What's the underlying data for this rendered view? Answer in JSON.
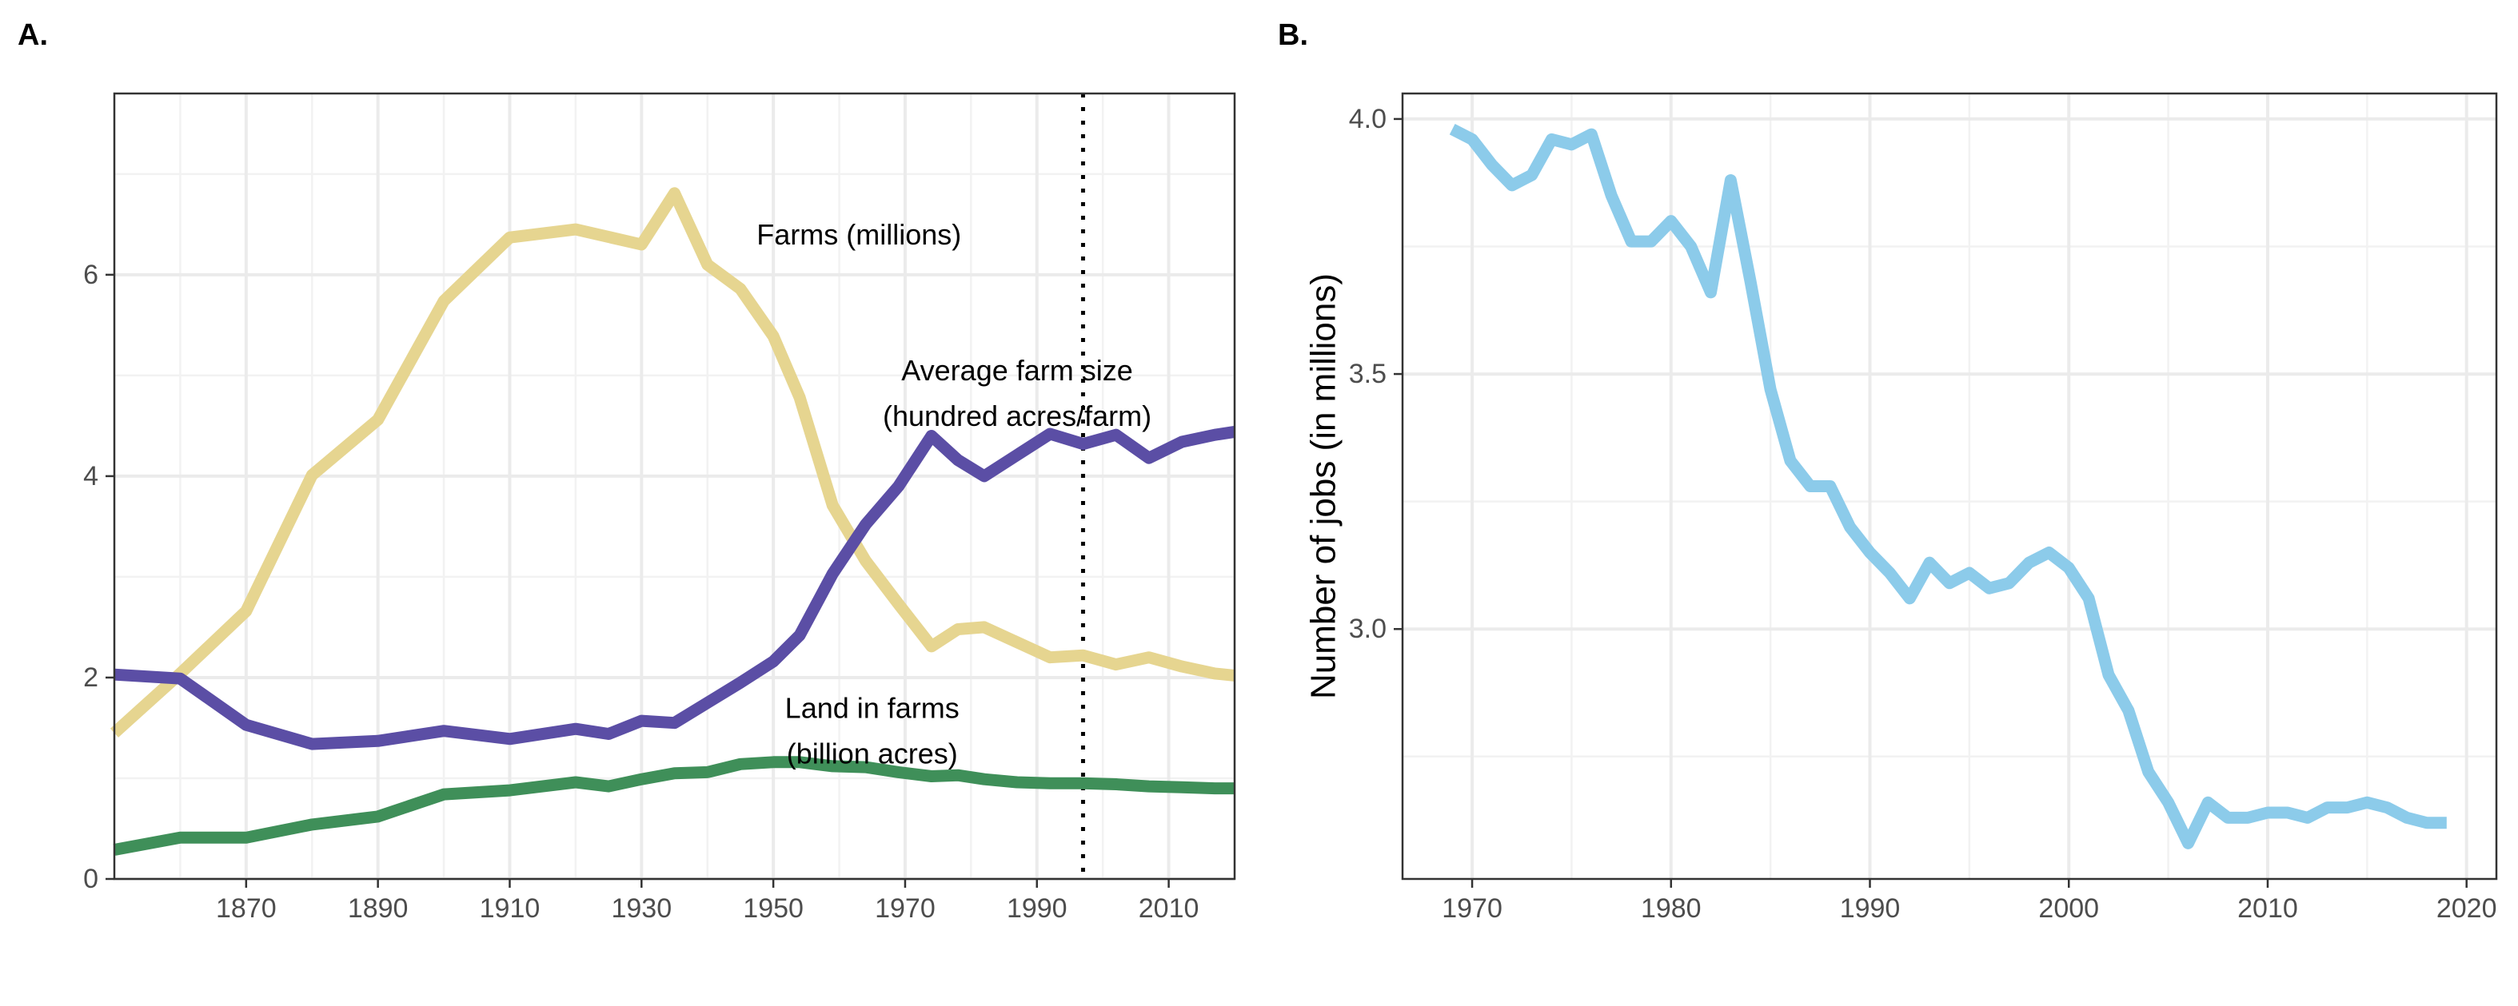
{
  "chart_data": [
    {
      "panel": "A.",
      "type": "line",
      "xlim": [
        1850,
        2020
      ],
      "ylim": [
        0,
        7.8
      ],
      "x_ticks": [
        1870,
        1890,
        1910,
        1930,
        1950,
        1970,
        1990,
        2010
      ],
      "y_ticks": [
        0,
        2,
        4,
        6
      ],
      "grid": true,
      "vline": {
        "x": 1997,
        "style": "dotted"
      },
      "annotations": [
        {
          "lines": [
            "Farms (millions)"
          ],
          "x": 1963,
          "y": 6.3
        },
        {
          "lines": [
            "Average farm size",
            "(hundred acres/farm)"
          ],
          "x": 1987,
          "y": 4.95
        },
        {
          "lines": [
            "Land in farms",
            "(billion acres)"
          ],
          "x": 1965,
          "y": 1.6
        }
      ],
      "series": [
        {
          "key": "farms",
          "color": "#e6d590",
          "x": [
            1850,
            1860,
            1870,
            1880,
            1890,
            1900,
            1910,
            1920,
            1930,
            1935,
            1940,
            1945,
            1950,
            1954,
            1959,
            1964,
            1969,
            1974,
            1978,
            1982,
            1987,
            1992,
            1997,
            2002,
            2007,
            2012,
            2017,
            2020
          ],
          "y": [
            1.45,
            2.04,
            2.66,
            4.01,
            4.56,
            5.74,
            6.37,
            6.45,
            6.3,
            6.81,
            6.1,
            5.86,
            5.39,
            4.78,
            3.71,
            3.16,
            2.73,
            2.31,
            2.48,
            2.5,
            2.35,
            2.2,
            2.22,
            2.13,
            2.2,
            2.11,
            2.04,
            2.02
          ]
        },
        {
          "key": "average-farm-size",
          "color": "#5b4ea5",
          "x": [
            1850,
            1860,
            1870,
            1880,
            1890,
            1900,
            1910,
            1920,
            1925,
            1930,
            1935,
            1940,
            1945,
            1950,
            1954,
            1959,
            1964,
            1969,
            1974,
            1978,
            1982,
            1987,
            1992,
            1997,
            2002,
            2007,
            2012,
            2017,
            2020
          ],
          "y": [
            2.03,
            1.99,
            1.53,
            1.34,
            1.37,
            1.47,
            1.39,
            1.49,
            1.44,
            1.57,
            1.55,
            1.75,
            1.95,
            2.16,
            2.42,
            3.03,
            3.52,
            3.9,
            4.4,
            4.16,
            4.0,
            4.21,
            4.42,
            4.32,
            4.41,
            4.18,
            4.34,
            4.41,
            4.44
          ]
        },
        {
          "key": "land-in-farms",
          "color": "#3f8f59",
          "x": [
            1850,
            1860,
            1870,
            1880,
            1890,
            1900,
            1910,
            1920,
            1925,
            1930,
            1935,
            1940,
            1945,
            1950,
            1954,
            1959,
            1964,
            1969,
            1974,
            1978,
            1982,
            1987,
            1992,
            1997,
            2002,
            2007,
            2012,
            2017,
            2020
          ],
          "y": [
            0.29,
            0.41,
            0.41,
            0.54,
            0.62,
            0.84,
            0.88,
            0.96,
            0.92,
            0.99,
            1.05,
            1.06,
            1.14,
            1.16,
            1.16,
            1.12,
            1.11,
            1.06,
            1.02,
            1.03,
            0.99,
            0.96,
            0.95,
            0.95,
            0.94,
            0.92,
            0.91,
            0.9,
            0.9
          ]
        }
      ]
    },
    {
      "panel": "B.",
      "type": "line",
      "ylabel": "Number of jobs (in millions)",
      "xlim": [
        1966.5,
        2021.5
      ],
      "ylim": [
        2.51,
        4.05
      ],
      "x_ticks": [
        1970,
        1980,
        1990,
        2000,
        2010,
        2020
      ],
      "y_ticks": [
        3.0,
        3.5,
        4.0
      ],
      "y_tick_labels": [
        "3.0",
        "3.5",
        "4.0"
      ],
      "grid": true,
      "series": [
        {
          "key": "jobs",
          "color": "#8ccbea",
          "x": [
            1969,
            1970,
            1971,
            1972,
            1973,
            1974,
            1975,
            1976,
            1977,
            1978,
            1979,
            1980,
            1981,
            1982,
            1983,
            1984,
            1985,
            1986,
            1987,
            1988,
            1989,
            1990,
            1991,
            1992,
            1993,
            1994,
            1995,
            1996,
            1997,
            1998,
            1999,
            2000,
            2001,
            2002,
            2003,
            2004,
            2005,
            2006,
            2007,
            2008,
            2009,
            2010,
            2011,
            2012,
            2013,
            2014,
            2015,
            2016,
            2017,
            2018,
            2019
          ],
          "y": [
            3.98,
            3.96,
            3.91,
            3.87,
            3.89,
            3.96,
            3.95,
            3.97,
            3.85,
            3.76,
            3.76,
            3.8,
            3.75,
            3.66,
            3.88,
            3.68,
            3.47,
            3.33,
            3.28,
            3.28,
            3.2,
            3.15,
            3.11,
            3.06,
            3.13,
            3.09,
            3.11,
            3.08,
            3.09,
            3.13,
            3.15,
            3.12,
            3.06,
            2.91,
            2.84,
            2.72,
            2.66,
            2.58,
            2.66,
            2.63,
            2.63,
            2.64,
            2.64,
            2.63,
            2.65,
            2.65,
            2.66,
            2.65,
            2.63,
            2.62,
            2.62
          ]
        }
      ]
    }
  ]
}
